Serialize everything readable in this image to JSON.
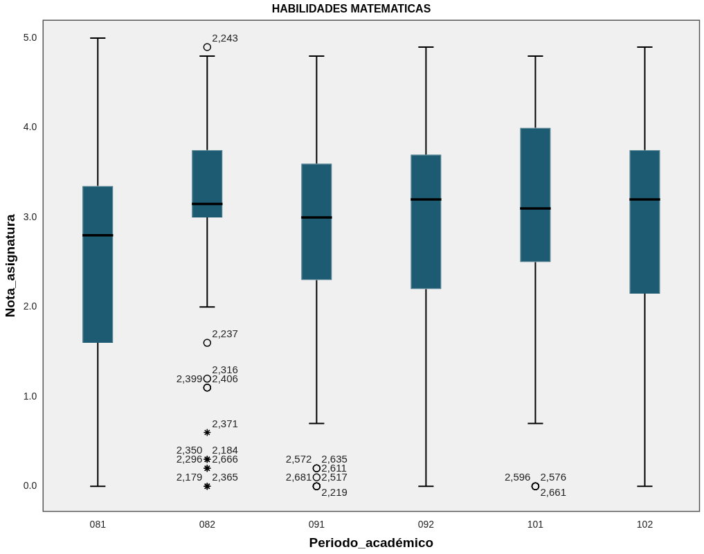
{
  "chart_data": {
    "type": "box",
    "title": "HABILIDADES MATEMATICAS",
    "xlabel": "Periodo_académico",
    "ylabel": "Nota_asignatura",
    "categories": [
      "081",
      "082",
      "091",
      "092",
      "101",
      "102"
    ],
    "color": "#1d5b72",
    "boxes": [
      {
        "low": 0,
        "q1": 1.6,
        "median": 2.8,
        "q3": 3.35,
        "high": 5.0
      },
      {
        "low": 2.0,
        "q1": 3.0,
        "median": 3.15,
        "q3": 3.75,
        "high": 4.8
      },
      {
        "low": 0.7,
        "q1": 2.3,
        "median": 3.0,
        "q3": 3.6,
        "high": 4.8
      },
      {
        "low": 0,
        "q1": 2.2,
        "median": 3.2,
        "q3": 3.7,
        "high": 4.9
      },
      {
        "low": 0.7,
        "q1": 2.5,
        "median": 3.1,
        "q3": 4.0,
        "high": 4.8
      },
      {
        "low": 0,
        "q1": 2.15,
        "median": 3.2,
        "q3": 3.75,
        "high": 4.9
      }
    ],
    "series": [
      {
        "type": "scatter",
        "marker": "circle",
        "color": "#000000",
        "x": [
          "082",
          "082",
          "082",
          "082",
          "082",
          "091",
          "091",
          "091",
          "091",
          "091",
          "091",
          "101",
          "101",
          "101"
        ],
        "values": [
          4.9,
          1.6,
          1.2,
          1.1,
          1.1,
          0.2,
          0.2,
          0.1,
          0,
          0,
          0,
          0,
          0,
          0
        ]
      },
      {
        "type": "scatter",
        "marker": "cross",
        "color": "#000000",
        "x": [
          "082",
          "082",
          "082",
          "082",
          "082",
          "082",
          "082"
        ],
        "values": [
          0.6,
          0.3,
          0.3,
          0.2,
          0.2,
          0,
          0
        ]
      }
    ],
    "ylim": [
      -0.28,
      5.2
    ],
    "yticks": [
      {
        "value": 0,
        "label": "0.0"
      },
      {
        "value": 1,
        "label": "1.0"
      },
      {
        "value": 2,
        "label": "2.0"
      },
      {
        "value": 3,
        "label": "3.0"
      },
      {
        "value": 4,
        "label": "4.0"
      },
      {
        "value": 5,
        "label": "5.0"
      }
    ],
    "annotations": [
      {
        "text": "2,243",
        "x": "082",
        "y": 4.9
      },
      {
        "text": "2,237",
        "x": "082",
        "y": 1.6
      },
      {
        "text": "2,316",
        "x": "082",
        "y": 1.2
      },
      {
        "text": "2,406",
        "x": "082",
        "y": 1.1
      },
      {
        "text": "2,399",
        "x": "082",
        "y": 1.1
      },
      {
        "text": "2,371",
        "x": "082",
        "y": 0.6
      },
      {
        "text": "2,184",
        "x": "082",
        "y": 0.3
      },
      {
        "text": "2,350",
        "x": "082",
        "y": 0.3
      },
      {
        "text": "2,666",
        "x": "082",
        "y": 0.2
      },
      {
        "text": "2,296",
        "x": "082",
        "y": 0.2
      },
      {
        "text": "2,365",
        "x": "082",
        "y": 0
      },
      {
        "text": "2,179",
        "x": "082",
        "y": 0
      },
      {
        "text": "2,635",
        "x": "091",
        "y": 0.2
      },
      {
        "text": "2,572",
        "x": "091",
        "y": 0.2
      },
      {
        "text": "2,611",
        "x": "091",
        "y": 0.1
      },
      {
        "text": "2,517",
        "x": "091",
        "y": 0
      },
      {
        "text": "2,681",
        "x": "091",
        "y": 0
      },
      {
        "text": "2,219",
        "x": "091",
        "y": 0
      },
      {
        "text": "2,576",
        "x": "101",
        "y": 0
      },
      {
        "text": "2,596",
        "x": "101",
        "y": 0
      },
      {
        "text": "2,661",
        "x": "101",
        "y": 0
      }
    ]
  }
}
